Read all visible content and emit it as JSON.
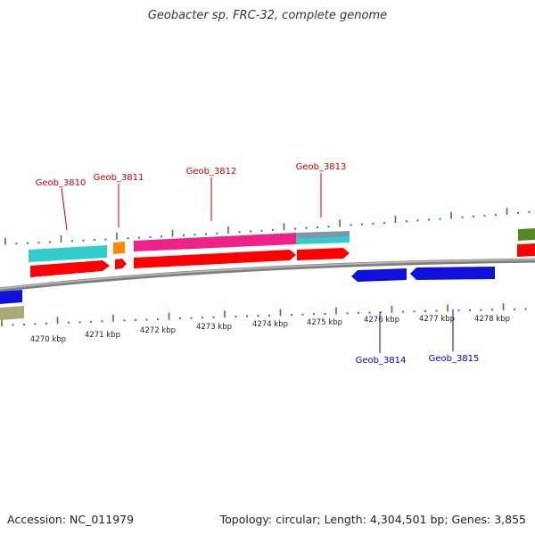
{
  "title": "Geobacter sp. FRC-32, complete genome",
  "footer": {
    "accession": "Accession: NC_011979",
    "summary": "Topology: circular; Length: 4,304,501 bp; Genes: 3,855"
  },
  "colors": {
    "background": "#ffffff",
    "backbone": "#808080",
    "tick": "#2e8b2e",
    "forward_label": "#cc0000",
    "reverse_label": "#0000cc",
    "gene_red": "#ff0000",
    "gene_cyan": "#33cccc",
    "gene_magenta": "#ee2288",
    "gene_orange": "#ff8800",
    "gene_blue": "#1010dd",
    "gene_olive": "#558822",
    "gene_khaki": "#aaaa77"
  },
  "axis": {
    "unit": "kbp",
    "labels": [
      "4270 kbp",
      "4271 kbp",
      "4272 kbp",
      "4273 kbp",
      "4274 kbp",
      "4275 kbp",
      "4276 kbp",
      "4277 kbp",
      "4278 kbp"
    ]
  },
  "gene_labels": {
    "forward": [
      "Geob_3810",
      "Geob_3811",
      "Geob_3812",
      "Geob_3813"
    ],
    "reverse": [
      "Geob_3814",
      "Geob_3815"
    ]
  }
}
